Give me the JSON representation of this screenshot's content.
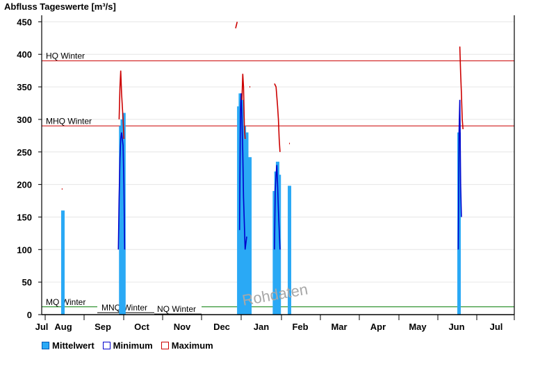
{
  "chart_data": {
    "type": "bar",
    "title": "Abfluss Tageswerte [m³/s]",
    "ylim": [
      0,
      460
    ],
    "y_ticks": [
      0,
      50,
      100,
      150,
      200,
      250,
      300,
      350,
      400,
      450
    ],
    "x_ticks": [
      "Jul",
      "Aug",
      "Sep",
      "Oct",
      "Nov",
      "Dec",
      "Jan",
      "Feb",
      "Mar",
      "Apr",
      "May",
      "Jun",
      "Jul"
    ],
    "grid": true,
    "watermark": "Rohdaten",
    "reference_lines": [
      {
        "label": "HQ Winter",
        "value": 390,
        "color": "#cc0000"
      },
      {
        "label": "MHQ Winter",
        "value": 290,
        "color": "#cc0000"
      },
      {
        "label": "MQ Winter",
        "value": 12,
        "color": "#007a00"
      },
      {
        "label": "MNQ Winter",
        "value": 3,
        "color": "#000000"
      },
      {
        "label": "NQ Winter",
        "value": 1,
        "color": "#000000"
      }
    ],
    "series": [
      {
        "name": "Mittelwert",
        "color": "#2aa9f5",
        "points": [
          {
            "t": 0.5,
            "v": 160
          },
          {
            "t": 1.96,
            "v": 290
          },
          {
            "t": 2.0,
            "v": 300
          },
          {
            "t": 2.04,
            "v": 310
          },
          {
            "t": 4.94,
            "v": 320
          },
          {
            "t": 4.98,
            "v": 340
          },
          {
            "t": 5.02,
            "v": 330
          },
          {
            "t": 5.08,
            "v": 290
          },
          {
            "t": 5.14,
            "v": 280
          },
          {
            "t": 5.22,
            "v": 242
          },
          {
            "t": 5.84,
            "v": 190
          },
          {
            "t": 5.88,
            "v": 220
          },
          {
            "t": 5.92,
            "v": 235
          },
          {
            "t": 5.96,
            "v": 215
          },
          {
            "t": 6.22,
            "v": 198
          },
          {
            "t": 10.5,
            "v": 280
          }
        ]
      },
      {
        "name": "Minimum",
        "color": "#0000cc",
        "points": [
          {
            "t": 1.9,
            "v": 100
          },
          {
            "t": 1.92,
            "v": 180
          },
          {
            "t": 1.94,
            "v": 240
          },
          {
            "t": 1.96,
            "v": 270
          },
          {
            "t": 1.98,
            "v": 280
          },
          {
            "t": 2.0,
            "v": 270
          },
          {
            "t": 2.02,
            "v": 260
          },
          {
            "t": 2.04,
            "v": 200
          },
          {
            "t": 2.06,
            "v": 100
          },
          {
            "t": 4.96,
            "v": 130
          },
          {
            "t": 4.98,
            "v": 310
          },
          {
            "t": 5.0,
            "v": 340
          },
          {
            "t": 5.02,
            "v": 300
          },
          {
            "t": 5.04,
            "v": 250
          },
          {
            "t": 5.06,
            "v": 180
          },
          {
            "t": 5.1,
            "v": 100
          },
          {
            "t": 5.14,
            "v": 120
          },
          {
            "t": 5.84,
            "v": 100
          },
          {
            "t": 5.86,
            "v": 190
          },
          {
            "t": 5.88,
            "v": 215
          },
          {
            "t": 5.9,
            "v": 230
          },
          {
            "t": 5.92,
            "v": 200
          },
          {
            "t": 5.94,
            "v": 160
          },
          {
            "t": 5.98,
            "v": 100
          },
          {
            "t": 10.48,
            "v": 100
          },
          {
            "t": 10.5,
            "v": 280
          },
          {
            "t": 10.52,
            "v": 330
          },
          {
            "t": 10.54,
            "v": 200
          },
          {
            "t": 10.56,
            "v": 150
          }
        ]
      },
      {
        "name": "Maximum",
        "color": "#cc0000",
        "points": [
          {
            "t": 1.92,
            "v": 300
          },
          {
            "t": 1.94,
            "v": 350
          },
          {
            "t": 1.96,
            "v": 375
          },
          {
            "t": 1.98,
            "v": 340
          },
          {
            "t": 2.0,
            "v": 320
          },
          {
            "t": 2.02,
            "v": 300
          },
          {
            "t": 2.04,
            "v": 270
          },
          {
            "t": 4.86,
            "v": 440
          },
          {
            "t": 4.9,
            "v": 450
          },
          {
            "t": 5.02,
            "v": 330
          },
          {
            "t": 5.04,
            "v": 370
          },
          {
            "t": 5.06,
            "v": 350
          },
          {
            "t": 5.08,
            "v": 290
          },
          {
            "t": 5.1,
            "v": 270
          },
          {
            "t": 5.84,
            "v": 355
          },
          {
            "t": 5.88,
            "v": 350
          },
          {
            "t": 5.92,
            "v": 320
          },
          {
            "t": 5.94,
            "v": 300
          },
          {
            "t": 5.96,
            "v": 270
          },
          {
            "t": 5.98,
            "v": 250
          },
          {
            "t": 10.52,
            "v": 412
          },
          {
            "t": 10.54,
            "v": 370
          },
          {
            "t": 10.56,
            "v": 340
          },
          {
            "t": 10.58,
            "v": 300
          },
          {
            "t": 10.6,
            "v": 285
          }
        ]
      }
    ],
    "stray_marks": [
      {
        "t": 0.48,
        "v": 193,
        "color": "#cc0000"
      },
      {
        "t": 0.48,
        "v": 120,
        "color": "#2aa9f5"
      },
      {
        "t": 5.22,
        "v": 350,
        "color": "#cc0000"
      },
      {
        "t": 6.22,
        "v": 263,
        "color": "#cc0000"
      },
      {
        "t": 6.22,
        "v": 112,
        "color": "#2aa9f5"
      }
    ]
  },
  "legend": [
    {
      "label": "Mittelwert",
      "fill": "#2aa9f5",
      "border": "#0058b8"
    },
    {
      "label": "Minimum",
      "fill": "#ffffff",
      "border": "#0000cc"
    },
    {
      "label": "Maximum",
      "fill": "#ffffff",
      "border": "#cc0000"
    }
  ]
}
